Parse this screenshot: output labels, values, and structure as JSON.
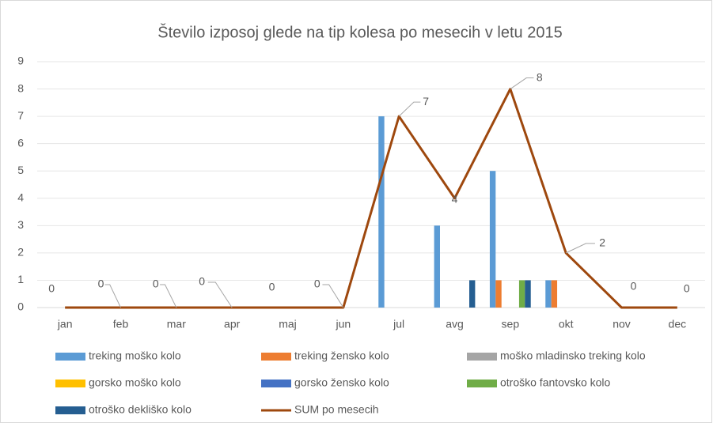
{
  "chart_data": {
    "type": "bar",
    "title": "Število izposoj glede na tip kolesa po mesecih v letu 2015",
    "categories": [
      "jan",
      "feb",
      "mar",
      "apr",
      "maj",
      "jun",
      "jul",
      "avg",
      "sep",
      "okt",
      "nov",
      "dec"
    ],
    "series": [
      {
        "name": "treking moško kolo",
        "color": "#5b9bd5",
        "values": [
          0,
          0,
          0,
          0,
          0,
          0,
          7,
          3,
          5,
          1,
          0,
          0
        ]
      },
      {
        "name": "treking žensko kolo",
        "color": "#ed7d31",
        "values": [
          0,
          0,
          0,
          0,
          0,
          0,
          0,
          0,
          1,
          1,
          0,
          0
        ]
      },
      {
        "name": "moško mladinsko treking kolo",
        "color": "#a5a5a5",
        "values": [
          0,
          0,
          0,
          0,
          0,
          0,
          0,
          0,
          0,
          0,
          0,
          0
        ]
      },
      {
        "name": "gorsko moško kolo",
        "color": "#ffc000",
        "values": [
          0,
          0,
          0,
          0,
          0,
          0,
          0,
          0,
          0,
          0,
          0,
          0
        ]
      },
      {
        "name": "gorsko žensko kolo",
        "color": "#4472c4",
        "values": [
          0,
          0,
          0,
          0,
          0,
          0,
          0,
          0,
          0,
          0,
          0,
          0
        ]
      },
      {
        "name": "otroško fantovsko kolo",
        "color": "#70ad47",
        "values": [
          0,
          0,
          0,
          0,
          0,
          0,
          0,
          0,
          1,
          0,
          0,
          0
        ]
      },
      {
        "name": "otroško dekliško kolo",
        "color": "#255e91",
        "values": [
          0,
          0,
          0,
          0,
          0,
          0,
          0,
          1,
          1,
          0,
          0,
          0
        ]
      },
      {
        "name": "SUM po mesecih",
        "type": "line",
        "color": "#9e480e",
        "values": [
          0,
          0,
          0,
          0,
          0,
          0,
          7,
          4,
          8,
          2,
          0,
          0
        ]
      }
    ],
    "ylim": [
      0,
      9
    ],
    "yticks": [
      0,
      1,
      2,
      3,
      4,
      5,
      6,
      7,
      8,
      9
    ],
    "grid": true
  }
}
